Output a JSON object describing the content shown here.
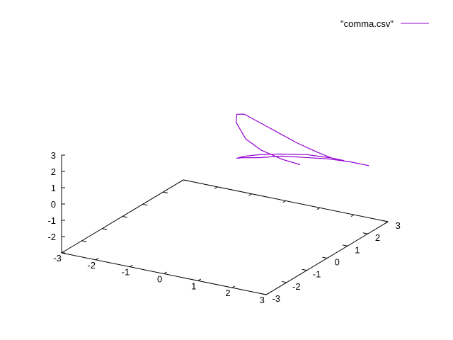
{
  "chart_data": {
    "type": "line",
    "projection": "3d",
    "title": "",
    "xlabel": "",
    "ylabel": "",
    "zlabel": "",
    "xlim": [
      -3,
      3
    ],
    "ylim": [
      -3,
      3
    ],
    "zlim": [
      -3,
      3
    ],
    "x_ticks": [
      "-3",
      "-2",
      "-1",
      "0",
      "1",
      "2",
      "3"
    ],
    "y_ticks": [
      "-3",
      "-2",
      "-1",
      "0",
      "1",
      "2",
      "3"
    ],
    "z_ticks": [
      "3",
      "2",
      "1",
      "0",
      "-1",
      "-2",
      "-3"
    ],
    "grid": false,
    "legend_position": "top-right",
    "series": [
      {
        "name": "\"comma.csv\"",
        "color": "#9400d3",
        "points": [
          [
            0.9,
            2.2,
            0.2
          ],
          [
            0.5,
            2.0,
            0.5
          ],
          [
            0.0,
            1.8,
            1.0
          ],
          [
            -0.4,
            1.7,
            1.6
          ],
          [
            -0.8,
            1.9,
            2.3
          ],
          [
            -0.9,
            2.1,
            2.6
          ],
          [
            -0.8,
            2.3,
            2.5
          ],
          [
            -0.5,
            2.5,
            2.0
          ],
          [
            0.0,
            2.6,
            1.5
          ],
          [
            0.5,
            2.7,
            1.0
          ],
          [
            1.0,
            2.8,
            0.6
          ],
          [
            1.4,
            2.9,
            0.3
          ],
          [
            1.7,
            3.0,
            0.2
          ],
          [
            1.4,
            2.9,
            0.3
          ],
          [
            0.8,
            2.7,
            0.4
          ],
          [
            0.2,
            2.4,
            0.4
          ],
          [
            -0.3,
            2.2,
            0.3
          ],
          [
            -0.7,
            2.1,
            0.1
          ],
          [
            -0.9,
            2.1,
            -0.1
          ],
          [
            -0.8,
            2.2,
            -0.1
          ],
          [
            -0.4,
            2.3,
            0.0
          ],
          [
            0.2,
            2.5,
            0.2
          ],
          [
            0.8,
            2.6,
            0.3
          ],
          [
            1.4,
            2.7,
            0.4
          ],
          [
            2.0,
            2.8,
            0.4
          ],
          [
            2.5,
            2.9,
            0.3
          ]
        ]
      }
    ]
  }
}
